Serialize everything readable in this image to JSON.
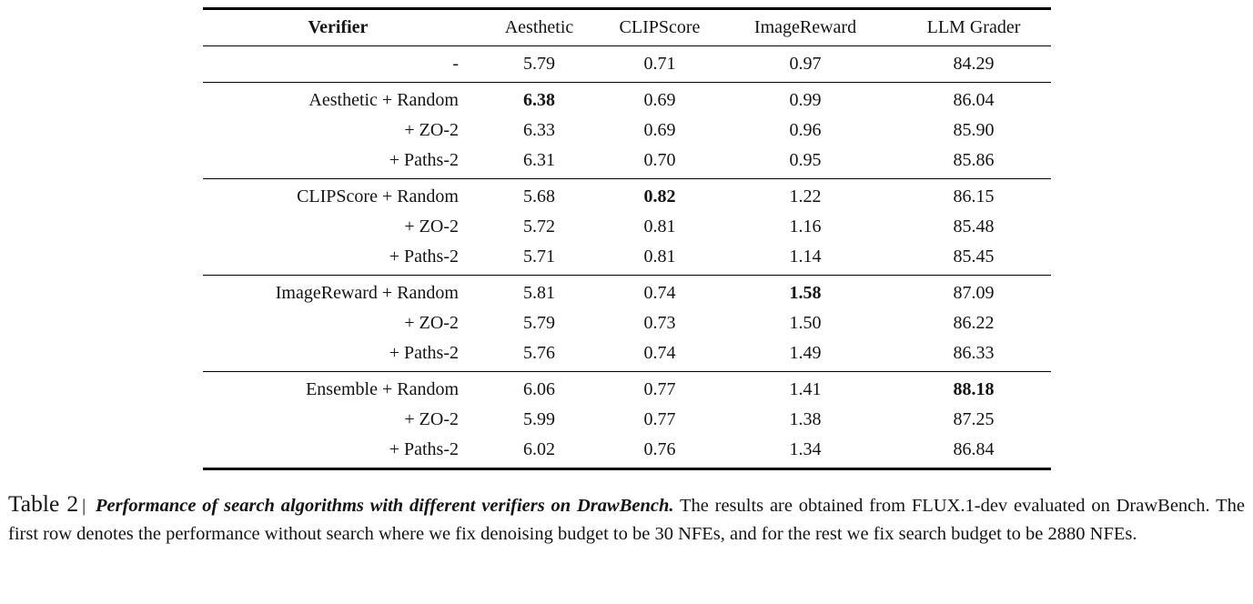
{
  "table": {
    "header": {
      "verifier": "Verifier",
      "aesthetic": "Aesthetic",
      "clipscore": "CLIPScore",
      "imagereward": "ImageReward",
      "llm_grader": "LLM Grader"
    },
    "rows": [
      {
        "label": "-",
        "v": [
          "5.79",
          "0.71",
          "0.97",
          "84.29"
        ],
        "bold_col": null
      },
      {
        "label": "Aesthetic + Random",
        "v": [
          "6.38",
          "0.69",
          "0.99",
          "86.04"
        ],
        "bold_col": 0
      },
      {
        "label": "+ ZO-2",
        "v": [
          "6.33",
          "0.69",
          "0.96",
          "85.90"
        ],
        "bold_col": null
      },
      {
        "label": "+ Paths-2",
        "v": [
          "6.31",
          "0.70",
          "0.95",
          "85.86"
        ],
        "bold_col": null
      },
      {
        "label": "CLIPScore + Random",
        "v": [
          "5.68",
          "0.82",
          "1.22",
          "86.15"
        ],
        "bold_col": 1
      },
      {
        "label": "+ ZO-2",
        "v": [
          "5.72",
          "0.81",
          "1.16",
          "85.48"
        ],
        "bold_col": null
      },
      {
        "label": "+ Paths-2",
        "v": [
          "5.71",
          "0.81",
          "1.14",
          "85.45"
        ],
        "bold_col": null
      },
      {
        "label": "ImageReward + Random",
        "v": [
          "5.81",
          "0.74",
          "1.58",
          "87.09"
        ],
        "bold_col": 2
      },
      {
        "label": "+ ZO-2",
        "v": [
          "5.79",
          "0.73",
          "1.50",
          "86.22"
        ],
        "bold_col": null
      },
      {
        "label": "+ Paths-2",
        "v": [
          "5.76",
          "0.74",
          "1.49",
          "86.33"
        ],
        "bold_col": null
      },
      {
        "label": "Ensemble + Random",
        "v": [
          "6.06",
          "0.77",
          "1.41",
          "88.18"
        ],
        "bold_col": 3
      },
      {
        "label": "+ ZO-2",
        "v": [
          "5.99",
          "0.77",
          "1.38",
          "87.25"
        ],
        "bold_col": null
      },
      {
        "label": "+ Paths-2",
        "v": [
          "6.02",
          "0.76",
          "1.34",
          "86.84"
        ],
        "bold_col": null
      }
    ]
  },
  "caption": {
    "label": "Table 2",
    "separator": "|",
    "highlight": "Performance of search algorithms with different verifiers on DrawBench.",
    "body": "The results are obtained from FLUX.1-dev evaluated on DrawBench. The first row denotes the performance without search where we fix denoising budget to be 30 NFEs, and for the rest we fix search budget to be 2880 NFEs."
  }
}
